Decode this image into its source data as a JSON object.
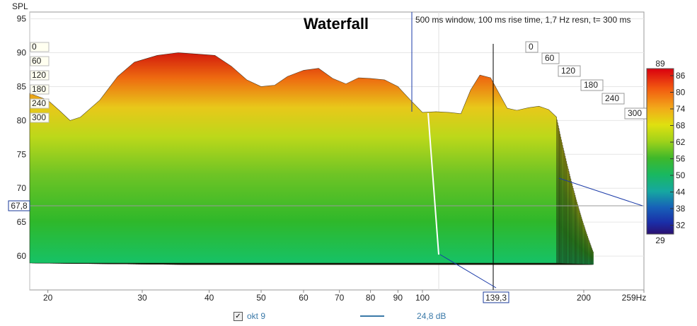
{
  "chart_data": {
    "type": "waterfall",
    "title": "Waterfall",
    "subtitle": "500 ms window, 100 ms rise time,  1,7 Hz resn, t= 300 ms",
    "ylabel": "SPL",
    "xunit": "Hz",
    "xlim": [
      18.5,
      259
    ],
    "ylim": [
      55,
      96
    ],
    "xscale": "log",
    "y_ticks": [
      60,
      65,
      70,
      75,
      80,
      85,
      90,
      95
    ],
    "x_ticks": [
      {
        "v": 20,
        "label": "20"
      },
      {
        "v": 30,
        "label": "30"
      },
      {
        "v": 40,
        "label": "40"
      },
      {
        "v": 50,
        "label": "50"
      },
      {
        "v": 60,
        "label": "60"
      },
      {
        "v": 70,
        "label": "70"
      },
      {
        "v": 80,
        "label": "80"
      },
      {
        "v": 90,
        "label": "90"
      },
      {
        "v": 100,
        "label": "100"
      },
      {
        "v": 200,
        "label": "200"
      },
      {
        "v": 259,
        "label": "259Hz"
      }
    ],
    "time_slices_ms": [
      0,
      60,
      120,
      180,
      240,
      300
    ],
    "time_labels_left": [
      "0",
      "60",
      "120",
      "180",
      "240",
      "300"
    ],
    "time_labels_right": [
      "0",
      "60",
      "120",
      "180",
      "240",
      "300"
    ],
    "colorbar": {
      "ticks": [
        86,
        80,
        74,
        68,
        62,
        56,
        50,
        44,
        38,
        32
      ],
      "max_label": "89",
      "min_label": "29"
    },
    "cursor": {
      "freq_hz": 139.3,
      "freq_label": "139,3",
      "spl_label": "67,8"
    },
    "front_slice_spl": [
      [
        18.5,
        84
      ],
      [
        20,
        83
      ],
      [
        21,
        81.5
      ],
      [
        22,
        80
      ],
      [
        23,
        80.5
      ],
      [
        25,
        83
      ],
      [
        27,
        86.5
      ],
      [
        29,
        88.6
      ],
      [
        32,
        89.6
      ],
      [
        35,
        90
      ],
      [
        38,
        89.8
      ],
      [
        41,
        89.6
      ],
      [
        44,
        88
      ],
      [
        47,
        86
      ],
      [
        50,
        85
      ],
      [
        53,
        85.2
      ],
      [
        56,
        86.5
      ],
      [
        60,
        87.4
      ],
      [
        64,
        87.7
      ],
      [
        68,
        86.2
      ],
      [
        72,
        85.4
      ],
      [
        76,
        86.3
      ],
      [
        80,
        86.2
      ],
      [
        85,
        86
      ],
      [
        90,
        85
      ],
      [
        95,
        83
      ],
      [
        100,
        81.2
      ],
      [
        106,
        81.3
      ],
      [
        112,
        81.2
      ],
      [
        118,
        81
      ],
      [
        123,
        84.5
      ],
      [
        128,
        86.7
      ],
      [
        134,
        86.3
      ],
      [
        139,
        84
      ],
      [
        144,
        81.8
      ],
      [
        150,
        81.5
      ],
      [
        158,
        81.9
      ],
      [
        165,
        82.1
      ],
      [
        172,
        81.6
      ],
      [
        178,
        80.5
      ]
    ],
    "series": [
      {
        "name": "okt 9",
        "value_label": "24,8 dB",
        "color": "#3a79a8"
      }
    ]
  },
  "legend": {
    "checkbox_label": "okt 9",
    "value": "24,8 dB",
    "checked": "✓"
  }
}
